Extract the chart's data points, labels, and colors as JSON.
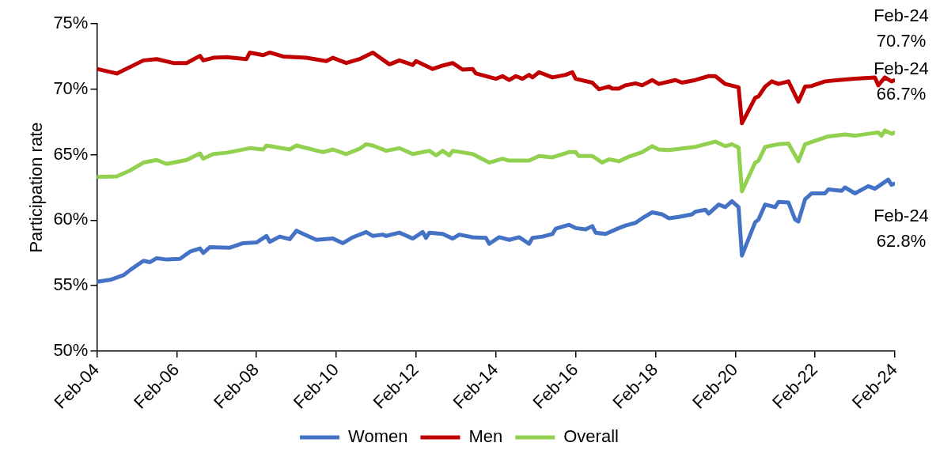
{
  "chart_data": {
    "type": "line",
    "ylabel": "Participation rate",
    "xlim": [
      "2004-02",
      "2024-02"
    ],
    "xticks": [
      {
        "value": "2004-02",
        "label": "Feb-04"
      },
      {
        "value": "2006-02",
        "label": "Feb-06"
      },
      {
        "value": "2008-02",
        "label": "Feb-08"
      },
      {
        "value": "2010-02",
        "label": "Feb-10"
      },
      {
        "value": "2012-02",
        "label": "Feb-12"
      },
      {
        "value": "2014-02",
        "label": "Feb-14"
      },
      {
        "value": "2016-02",
        "label": "Feb-16"
      },
      {
        "value": "2018-02",
        "label": "Feb-18"
      },
      {
        "value": "2020-02",
        "label": "Feb-20"
      },
      {
        "value": "2022-02",
        "label": "Feb-22"
      },
      {
        "value": "2024-02",
        "label": "Feb-24"
      }
    ],
    "ylim": [
      50,
      75
    ],
    "yticks": [
      {
        "value": 50,
        "label": "50%"
      },
      {
        "value": 55,
        "label": "55%"
      },
      {
        "value": 60,
        "label": "60%"
      },
      {
        "value": 65,
        "label": "65%"
      },
      {
        "value": 70,
        "label": "70%"
      },
      {
        "value": 75,
        "label": "75%"
      }
    ],
    "grid": false,
    "legend": "bottom",
    "marker": "none",
    "line_style": "solid",
    "series": [
      {
        "name": "Women",
        "color": "#4472c4",
        "x": [
          "2004-02",
          "2004-06",
          "2004-10",
          "2004-12",
          "2005-04",
          "2005-06",
          "2005-08",
          "2005-11",
          "2006-03",
          "2006-06",
          "2006-09",
          "2006-10",
          "2006-12",
          "2007-06",
          "2007-10",
          "2008-02",
          "2008-05",
          "2008-06",
          "2008-09",
          "2008-12",
          "2009-02",
          "2009-08",
          "2010-01",
          "2010-04",
          "2010-07",
          "2010-11",
          "2011-01",
          "2011-04",
          "2011-05",
          "2011-09",
          "2012-01",
          "2012-04",
          "2012-05",
          "2012-06",
          "2012-10",
          "2013-01",
          "2013-03",
          "2013-07",
          "2013-11",
          "2013-12",
          "2014-03",
          "2014-06",
          "2014-09",
          "2014-12",
          "2015-01",
          "2015-04",
          "2015-07",
          "2015-08",
          "2015-12",
          "2016-02",
          "2016-05",
          "2016-07",
          "2016-08",
          "2016-11",
          "2017-03",
          "2017-05",
          "2017-08",
          "2017-10",
          "2018-01",
          "2018-04",
          "2018-06",
          "2018-09",
          "2019-01",
          "2019-02",
          "2019-05",
          "2019-06",
          "2019-09",
          "2019-11",
          "2020-01",
          "2020-03",
          "2020-04",
          "2020-08",
          "2020-09",
          "2020-11",
          "2021-02",
          "2021-03",
          "2021-06",
          "2021-08",
          "2021-09",
          "2021-11",
          "2022-01",
          "2022-05",
          "2022-06",
          "2022-10",
          "2022-11",
          "2023-02",
          "2023-06",
          "2023-08",
          "2023-12",
          "2024-01",
          "2024-02"
        ],
        "values": [
          55.3,
          55.45,
          55.8,
          56.2,
          56.9,
          56.8,
          57.1,
          57.0,
          57.05,
          57.6,
          57.85,
          57.5,
          57.95,
          57.9,
          58.25,
          58.3,
          58.8,
          58.35,
          58.75,
          58.55,
          59.2,
          58.5,
          58.6,
          58.25,
          58.7,
          59.1,
          58.8,
          58.9,
          58.8,
          59.05,
          58.6,
          59.1,
          58.65,
          59.05,
          58.95,
          58.6,
          58.9,
          58.7,
          58.65,
          58.2,
          58.7,
          58.5,
          58.7,
          58.2,
          58.65,
          58.75,
          58.95,
          59.35,
          59.65,
          59.4,
          59.3,
          59.55,
          59.05,
          58.95,
          59.4,
          59.6,
          59.8,
          60.15,
          60.6,
          60.45,
          60.15,
          60.25,
          60.45,
          60.65,
          60.8,
          60.5,
          61.2,
          61.0,
          61.45,
          61.0,
          57.3,
          59.85,
          60.05,
          61.2,
          61.0,
          61.4,
          61.35,
          60.05,
          59.9,
          61.6,
          62.05,
          62.05,
          62.35,
          62.25,
          62.5,
          62.05,
          62.6,
          62.4,
          63.1,
          62.7,
          62.8
        ]
      },
      {
        "name": "Men",
        "color": "#c00000",
        "x": [
          "2004-02",
          "2004-08",
          "2005-04",
          "2005-08",
          "2006-01",
          "2006-05",
          "2006-09",
          "2006-10",
          "2007-01",
          "2007-05",
          "2007-11",
          "2007-12",
          "2008-04",
          "2008-06",
          "2008-10",
          "2009-05",
          "2009-11",
          "2010-01",
          "2010-05",
          "2010-09",
          "2011-01",
          "2011-06",
          "2011-09",
          "2012-01",
          "2012-02",
          "2012-07",
          "2012-10",
          "2013-01",
          "2013-04",
          "2013-07",
          "2013-08",
          "2014-02",
          "2014-04",
          "2014-06",
          "2014-08",
          "2014-10",
          "2014-12",
          "2015-01",
          "2015-03",
          "2015-07",
          "2015-11",
          "2016-01",
          "2016-02",
          "2016-07",
          "2016-09",
          "2016-12",
          "2017-01",
          "2017-03",
          "2017-05",
          "2017-08",
          "2017-10",
          "2018-01",
          "2018-03",
          "2018-08",
          "2018-10",
          "2019-02",
          "2019-06",
          "2019-08",
          "2019-11",
          "2020-03",
          "2020-04",
          "2020-08",
          "2020-09",
          "2020-11",
          "2021-01",
          "2021-03",
          "2021-06",
          "2021-09",
          "2021-11",
          "2022-01",
          "2022-05",
          "2022-09",
          "2023-02",
          "2023-08",
          "2023-09",
          "2023-11",
          "2024-01",
          "2024-02"
        ],
        "values": [
          71.55,
          71.2,
          72.2,
          72.3,
          72.0,
          72.0,
          72.55,
          72.2,
          72.4,
          72.45,
          72.3,
          72.8,
          72.6,
          72.8,
          72.5,
          72.4,
          72.15,
          72.4,
          72.0,
          72.3,
          72.8,
          71.9,
          72.2,
          71.85,
          72.15,
          71.55,
          71.8,
          72.0,
          71.5,
          71.55,
          71.2,
          70.8,
          71.0,
          70.7,
          71.0,
          70.8,
          71.1,
          70.9,
          71.3,
          70.9,
          71.1,
          71.3,
          70.8,
          70.5,
          70.0,
          70.2,
          70.05,
          70.05,
          70.3,
          70.45,
          70.3,
          70.7,
          70.4,
          70.7,
          70.5,
          70.7,
          71.0,
          71.0,
          70.4,
          70.15,
          67.4,
          69.35,
          69.45,
          70.2,
          70.6,
          70.4,
          70.6,
          69.05,
          70.2,
          70.25,
          70.6,
          70.7,
          70.8,
          70.9,
          70.3,
          70.9,
          70.6,
          70.7
        ]
      },
      {
        "name": "Overall",
        "color": "#92d050",
        "x": [
          "2004-02",
          "2004-08",
          "2004-12",
          "2005-04",
          "2005-08",
          "2005-11",
          "2006-05",
          "2006-09",
          "2006-10",
          "2007-01",
          "2007-05",
          "2007-12",
          "2008-04",
          "2008-05",
          "2008-12",
          "2009-02",
          "2009-10",
          "2010-01",
          "2010-05",
          "2010-09",
          "2010-11",
          "2011-01",
          "2011-05",
          "2011-09",
          "2012-01",
          "2012-06",
          "2012-08",
          "2012-10",
          "2012-12",
          "2013-01",
          "2013-07",
          "2013-12",
          "2014-04",
          "2014-06",
          "2014-12",
          "2015-03",
          "2015-07",
          "2015-12",
          "2016-02",
          "2016-03",
          "2016-07",
          "2016-10",
          "2016-12",
          "2017-03",
          "2017-06",
          "2017-10",
          "2018-01",
          "2018-03",
          "2018-06",
          "2018-09",
          "2019-02",
          "2019-05",
          "2019-08",
          "2019-11",
          "2020-01",
          "2020-03",
          "2020-04",
          "2020-08",
          "2020-09",
          "2020-11",
          "2021-01",
          "2021-03",
          "2021-06",
          "2021-09",
          "2021-11",
          "2022-03",
          "2022-06",
          "2022-11",
          "2023-02",
          "2023-06",
          "2023-09",
          "2023-10",
          "2023-11",
          "2024-01",
          "2024-02"
        ],
        "values": [
          63.3,
          63.35,
          63.8,
          64.4,
          64.6,
          64.3,
          64.6,
          65.1,
          64.7,
          65.05,
          65.15,
          65.5,
          65.4,
          65.7,
          65.4,
          65.7,
          65.2,
          65.4,
          65.05,
          65.45,
          65.8,
          65.7,
          65.3,
          65.5,
          65.05,
          65.3,
          64.95,
          65.3,
          64.95,
          65.3,
          65.05,
          64.4,
          64.7,
          64.55,
          64.55,
          64.9,
          64.8,
          65.2,
          65.2,
          64.9,
          64.9,
          64.4,
          64.65,
          64.5,
          64.85,
          65.2,
          65.65,
          65.4,
          65.35,
          65.45,
          65.6,
          65.8,
          66.0,
          65.65,
          65.8,
          65.55,
          62.2,
          64.4,
          64.55,
          65.6,
          65.7,
          65.8,
          65.85,
          64.5,
          65.8,
          66.15,
          66.4,
          66.55,
          66.45,
          66.6,
          66.7,
          66.45,
          66.85,
          66.6,
          66.7
        ]
      }
    ],
    "annotations": [
      {
        "text": "Feb-24\n70.7%",
        "x": "2024-02",
        "y": 70.7
      },
      {
        "text": "Feb-24\n66.7%",
        "x": "2024-02",
        "y": 66.7
      },
      {
        "text": "Feb-24\n62.8%",
        "x": "2024-02",
        "y": 62.8
      }
    ]
  }
}
